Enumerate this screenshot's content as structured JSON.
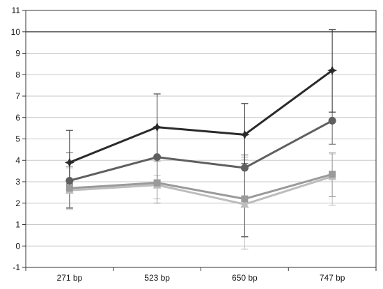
{
  "chart_data": {
    "type": "line",
    "title": "",
    "xlabel": "",
    "ylabel": "",
    "categories": [
      "271 bp",
      "523 bp",
      "650 bp",
      "747 bp"
    ],
    "ylim": [
      -1,
      11
    ],
    "yticks": [
      -1,
      0,
      1,
      2,
      3,
      4,
      5,
      6,
      7,
      8,
      9,
      10,
      11
    ],
    "highlight_gridline": 10,
    "grid": true,
    "legend": "none",
    "series": [
      {
        "marker": "star",
        "color": "#2a2a2a",
        "values": [
          3.9,
          5.55,
          5.2,
          8.2
        ],
        "error_high": [
          5.4,
          7.1,
          6.65,
          10.1
        ],
        "error_low": [
          2.9,
          4.1,
          3.85,
          6.25
        ]
      },
      {
        "marker": "circle",
        "color": "#5f5f5f",
        "values": [
          3.05,
          4.15,
          3.65,
          5.85
        ],
        "error_high": [
          4.35,
          5.5,
          4.25,
          6.25
        ],
        "error_low": [
          1.8,
          2.9,
          0.45,
          4.75
        ]
      },
      {
        "marker": "square",
        "color": "#9a9a9a",
        "values": [
          2.7,
          2.95,
          2.2,
          3.35
        ],
        "error_high": [
          3.7,
          3.95,
          4.15,
          4.35
        ],
        "error_low": [
          1.75,
          2.0,
          0.4,
          2.3
        ]
      },
      {
        "marker": "triangle",
        "color": "#bdbdbd",
        "values": [
          2.6,
          2.85,
          1.95,
          3.25
        ],
        "error_high": [
          3.65,
          3.3,
          4.05,
          4.3
        ],
        "error_low": [
          1.7,
          2.2,
          -0.15,
          1.9
        ]
      }
    ]
  }
}
